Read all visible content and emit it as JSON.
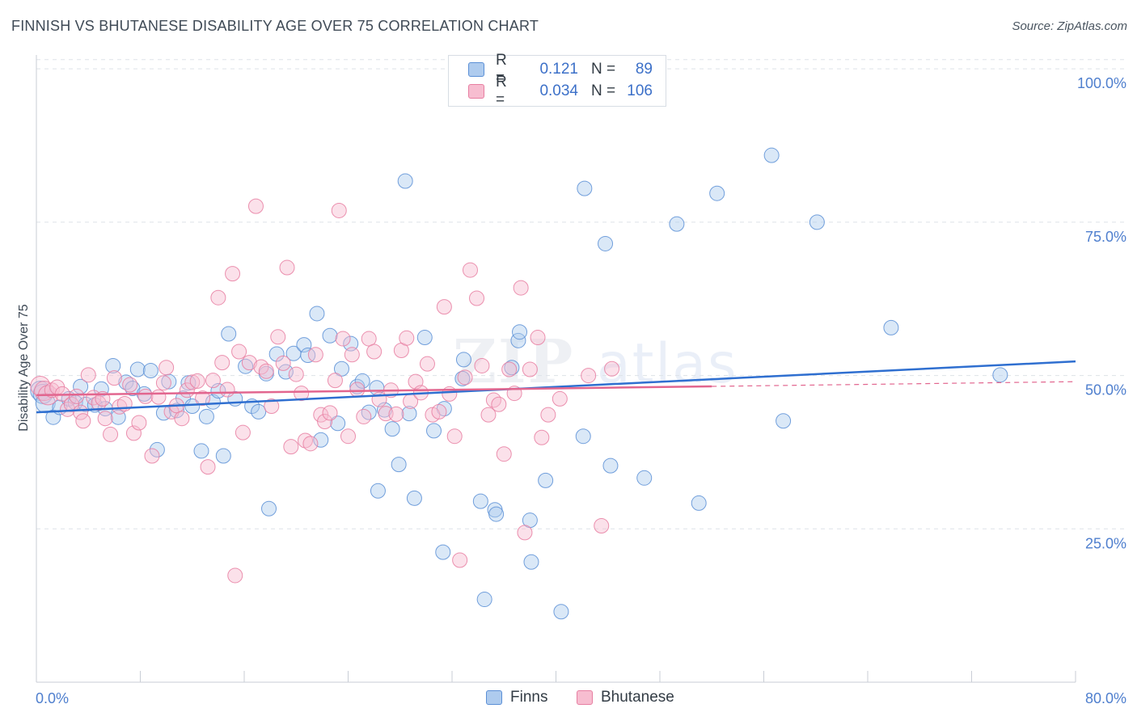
{
  "header": {
    "title": "FINNISH VS BHUTANESE DISABILITY AGE OVER 75 CORRELATION CHART",
    "source": "Source: ZipAtlas.com"
  },
  "watermark": {
    "zip": "ZIP",
    "atlas": "atlas"
  },
  "legend": {
    "rows": [
      {
        "r_label": "R =",
        "r_value": "0.121",
        "n_label": "N =",
        "n_value": "89"
      },
      {
        "r_label": "R =",
        "r_value": "0.034",
        "n_label": "N =",
        "n_value": "106"
      }
    ]
  },
  "bottom_legend": {
    "finns": "Finns",
    "bhutanese": "Bhutanese"
  },
  "colors": {
    "finns_fill": "#aecbee",
    "finns_stroke": "#5b8fd6",
    "finns_line": "#2f6fd0",
    "bhutanese_fill": "#f7bdd0",
    "bhutanese_stroke": "#e77ea1",
    "bhutanese_line": "#e2668f",
    "grid": "#dde2e8",
    "tick_text": "#4f7fce"
  },
  "chart_data": {
    "type": "scatter",
    "title": "FINNISH VS BHUTANESE DISABILITY AGE OVER 75 CORRELATION CHART",
    "xlabel": "",
    "ylabel": "Disability Age Over 75",
    "xlim": [
      0,
      80
    ],
    "ylim": [
      0,
      102
    ],
    "x_tick_labels": [
      "0.0%",
      "80.0%"
    ],
    "y_ticks": [
      25,
      50,
      75,
      100
    ],
    "y_tick_labels": [
      "25.0%",
      "50.0%",
      "75.0%",
      "100.0%"
    ],
    "grid": true,
    "legend_position": "top-center",
    "series": [
      {
        "name": "Finns",
        "r": 0.121,
        "n": 89,
        "trend": {
          "x": [
            0,
            80
          ],
          "y": [
            44.0,
            52.3
          ]
        },
        "points": [
          [
            0.3,
            47.5
          ],
          [
            0.5,
            47.0
          ],
          [
            0.7,
            45.5
          ],
          [
            1.3,
            43.2
          ],
          [
            1.8,
            44.8
          ],
          [
            2.5,
            46.2
          ],
          [
            3.0,
            45.6
          ],
          [
            3.4,
            48.2
          ],
          [
            3.8,
            45.3
          ],
          [
            4.5,
            45.2
          ],
          [
            5.0,
            47.8
          ],
          [
            5.3,
            44.6
          ],
          [
            5.9,
            51.6
          ],
          [
            6.3,
            43.2
          ],
          [
            6.9,
            48.9
          ],
          [
            7.4,
            47.9
          ],
          [
            7.8,
            51.0
          ],
          [
            8.3,
            47.0
          ],
          [
            8.8,
            50.8
          ],
          [
            9.3,
            37.9
          ],
          [
            9.8,
            43.9
          ],
          [
            10.2,
            49.0
          ],
          [
            10.8,
            44.3
          ],
          [
            11.3,
            46.3
          ],
          [
            11.7,
            48.8
          ],
          [
            12.0,
            45.0
          ],
          [
            12.7,
            37.7
          ],
          [
            13.1,
            43.3
          ],
          [
            13.6,
            45.7
          ],
          [
            14.0,
            47.5
          ],
          [
            14.4,
            36.9
          ],
          [
            14.8,
            56.8
          ],
          [
            15.3,
            46.2
          ],
          [
            16.1,
            51.5
          ],
          [
            16.6,
            45.0
          ],
          [
            17.1,
            44.1
          ],
          [
            17.7,
            50.3
          ],
          [
            17.9,
            28.3
          ],
          [
            18.5,
            53.5
          ],
          [
            19.2,
            50.6
          ],
          [
            19.8,
            53.6
          ],
          [
            20.6,
            55.0
          ],
          [
            20.9,
            53.3
          ],
          [
            21.6,
            60.1
          ],
          [
            21.9,
            39.5
          ],
          [
            22.6,
            56.5
          ],
          [
            23.2,
            42.2
          ],
          [
            23.5,
            51.1
          ],
          [
            24.2,
            55.2
          ],
          [
            24.7,
            48.2
          ],
          [
            25.1,
            49.1
          ],
          [
            25.6,
            44.0
          ],
          [
            26.2,
            48.0
          ],
          [
            26.3,
            31.2
          ],
          [
            26.8,
            44.4
          ],
          [
            27.4,
            41.3
          ],
          [
            27.9,
            35.5
          ],
          [
            28.4,
            81.7
          ],
          [
            28.7,
            43.8
          ],
          [
            29.1,
            30.0
          ],
          [
            29.9,
            56.2
          ],
          [
            30.6,
            41.0
          ],
          [
            31.3,
            21.2
          ],
          [
            31.4,
            44.6
          ],
          [
            32.8,
            49.5
          ],
          [
            32.9,
            52.6
          ],
          [
            34.2,
            29.5
          ],
          [
            34.5,
            13.5
          ],
          [
            35.3,
            28.1
          ],
          [
            35.4,
            27.4
          ],
          [
            36.6,
            51.3
          ],
          [
            37.1,
            55.7
          ],
          [
            37.2,
            57.1
          ],
          [
            38.0,
            26.4
          ],
          [
            38.1,
            19.6
          ],
          [
            39.2,
            32.9
          ],
          [
            40.4,
            11.5
          ],
          [
            42.1,
            40.1
          ],
          [
            42.2,
            80.5
          ],
          [
            43.8,
            71.5
          ],
          [
            44.2,
            35.3
          ],
          [
            46.8,
            33.3
          ],
          [
            49.3,
            74.7
          ],
          [
            51.0,
            29.2
          ],
          [
            52.4,
            79.7
          ],
          [
            56.6,
            85.9
          ],
          [
            57.5,
            42.6
          ],
          [
            60.1,
            75.0
          ],
          [
            65.8,
            57.8
          ],
          [
            74.2,
            50.1
          ]
        ]
      },
      {
        "name": "Bhutanese",
        "r": 0.034,
        "n": 106,
        "trend": {
          "x": [
            0,
            80
          ],
          "y": [
            46.8,
            49.0
          ]
        },
        "trend_dashed_from_x": 52,
        "points": [
          [
            0.3,
            48.3
          ],
          [
            0.6,
            47.5
          ],
          [
            0.9,
            46.8
          ],
          [
            1.2,
            47.6
          ],
          [
            1.6,
            48.1
          ],
          [
            2.0,
            47.0
          ],
          [
            2.4,
            44.5
          ],
          [
            2.7,
            45.3
          ],
          [
            3.1,
            46.6
          ],
          [
            3.4,
            44.0
          ],
          [
            3.6,
            42.6
          ],
          [
            4.0,
            50.1
          ],
          [
            4.4,
            46.4
          ],
          [
            4.8,
            45.5
          ],
          [
            5.1,
            46.2
          ],
          [
            5.3,
            43.0
          ],
          [
            5.7,
            40.4
          ],
          [
            6.0,
            49.6
          ],
          [
            6.4,
            44.9
          ],
          [
            6.8,
            45.4
          ],
          [
            7.2,
            48.5
          ],
          [
            7.5,
            40.6
          ],
          [
            7.9,
            42.3
          ],
          [
            8.4,
            46.6
          ],
          [
            8.9,
            36.9
          ],
          [
            9.4,
            46.5
          ],
          [
            9.8,
            48.8
          ],
          [
            10.0,
            51.3
          ],
          [
            10.4,
            44.1
          ],
          [
            10.8,
            45.1
          ],
          [
            11.2,
            43.0
          ],
          [
            11.6,
            47.6
          ],
          [
            12.0,
            48.9
          ],
          [
            12.4,
            49.1
          ],
          [
            12.8,
            46.3
          ],
          [
            13.2,
            35.1
          ],
          [
            13.6,
            49.2
          ],
          [
            14.0,
            62.7
          ],
          [
            14.3,
            52.1
          ],
          [
            14.7,
            47.7
          ],
          [
            15.1,
            66.6
          ],
          [
            15.3,
            17.4
          ],
          [
            15.6,
            53.9
          ],
          [
            15.9,
            40.7
          ],
          [
            16.4,
            52.1
          ],
          [
            16.9,
            77.6
          ],
          [
            17.3,
            51.4
          ],
          [
            17.7,
            50.7
          ],
          [
            18.1,
            45.0
          ],
          [
            18.6,
            56.3
          ],
          [
            19.0,
            52.0
          ],
          [
            19.3,
            67.6
          ],
          [
            19.6,
            38.4
          ],
          [
            20.0,
            50.2
          ],
          [
            20.4,
            47.1
          ],
          [
            20.7,
            39.4
          ],
          [
            21.1,
            38.9
          ],
          [
            21.5,
            53.4
          ],
          [
            21.9,
            43.6
          ],
          [
            22.2,
            42.5
          ],
          [
            22.6,
            43.9
          ],
          [
            23.0,
            49.2
          ],
          [
            23.3,
            76.9
          ],
          [
            23.6,
            56.0
          ],
          [
            24.0,
            40.1
          ],
          [
            24.3,
            53.4
          ],
          [
            24.7,
            47.7
          ],
          [
            25.2,
            43.3
          ],
          [
            25.6,
            56.0
          ],
          [
            26.0,
            53.9
          ],
          [
            26.4,
            46.1
          ],
          [
            26.9,
            43.8
          ],
          [
            27.3,
            47.6
          ],
          [
            27.7,
            43.7
          ],
          [
            28.1,
            54.1
          ],
          [
            28.5,
            56.1
          ],
          [
            28.8,
            45.8
          ],
          [
            29.2,
            49.0
          ],
          [
            29.6,
            47.2
          ],
          [
            30.1,
            51.9
          ],
          [
            30.5,
            43.6
          ],
          [
            31.0,
            44.1
          ],
          [
            31.4,
            61.2
          ],
          [
            31.8,
            47.0
          ],
          [
            32.2,
            40.1
          ],
          [
            32.6,
            19.9
          ],
          [
            33.0,
            49.7
          ],
          [
            33.4,
            67.2
          ],
          [
            33.9,
            62.6
          ],
          [
            34.3,
            51.6
          ],
          [
            34.8,
            43.6
          ],
          [
            35.2,
            46.0
          ],
          [
            35.6,
            45.3
          ],
          [
            36.0,
            37.2
          ],
          [
            36.4,
            51.0
          ],
          [
            36.8,
            47.1
          ],
          [
            37.3,
            64.3
          ],
          [
            37.6,
            24.4
          ],
          [
            38.0,
            51.0
          ],
          [
            38.6,
            56.2
          ],
          [
            38.9,
            39.9
          ],
          [
            39.4,
            43.6
          ],
          [
            40.3,
            46.2
          ],
          [
            42.5,
            50.0
          ],
          [
            43.5,
            25.5
          ],
          [
            44.3,
            51.1
          ]
        ]
      }
    ]
  }
}
